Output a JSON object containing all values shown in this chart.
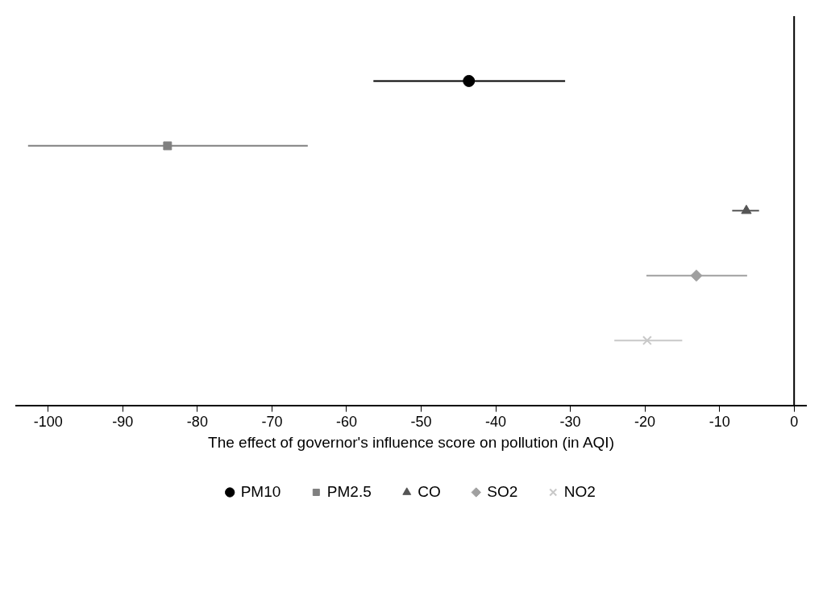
{
  "chart_data": {
    "type": "scatter",
    "orientation": "horizontal",
    "xlabel": "The effect of governor's influence score on pollution (in AQI)",
    "categories": [
      null,
      null,
      null,
      null,
      null
    ],
    "series": [
      {
        "name": "PM10",
        "color": "#000000",
        "marker": "circle",
        "values": [
          -43.6,
          null,
          null,
          null,
          null
        ],
        "errors": [
          [
            -56.4,
            -30.7
          ],
          null,
          null,
          null,
          null
        ]
      },
      {
        "name": "PM2.5",
        "color": "#808080",
        "marker": "square",
        "values": [
          null,
          -84.0,
          null,
          null,
          null
        ],
        "errors": [
          null,
          [
            -102.7,
            -65.2
          ],
          null,
          null,
          null
        ]
      },
      {
        "name": "CO",
        "color": "#555555",
        "marker": "triangle",
        "values": [
          null,
          null,
          -6.4,
          null,
          null
        ],
        "errors": [
          null,
          null,
          [
            -8.3,
            -4.7
          ],
          null,
          null
        ]
      },
      {
        "name": "SO2",
        "color": "#a0a0a0",
        "marker": "diamond",
        "values": [
          null,
          null,
          null,
          -13.1,
          null
        ],
        "errors": [
          null,
          null,
          null,
          [
            -19.8,
            -6.3
          ],
          null
        ]
      },
      {
        "name": "NO2",
        "color": "#c8c8c8",
        "marker": "cross",
        "values": [
          null,
          null,
          null,
          null,
          -19.7
        ],
        "errors": [
          null,
          null,
          null,
          null,
          [
            -24.1,
            -15.0
          ]
        ]
      }
    ],
    "xlim": [
      -104.3,
      1.6
    ],
    "xticks": [
      -100,
      -90,
      -80,
      -70,
      -60,
      -50,
      -40,
      -30,
      -20,
      -10,
      0
    ],
    "ref_lines": [
      {
        "axis": "x",
        "value": 0,
        "color": "#000000"
      }
    ],
    "grid": false,
    "legend": "bottom"
  }
}
